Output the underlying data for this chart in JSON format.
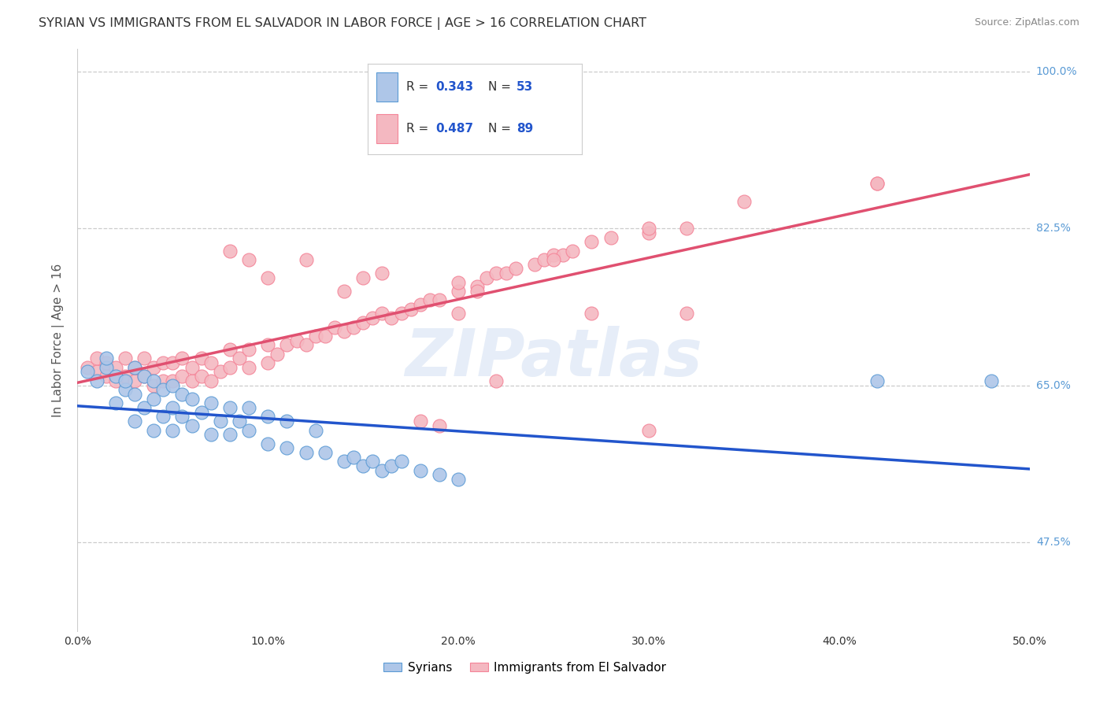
{
  "title": "SYRIAN VS IMMIGRANTS FROM EL SALVADOR IN LABOR FORCE | AGE > 16 CORRELATION CHART",
  "source": "Source: ZipAtlas.com",
  "ylabel_label": "In Labor Force | Age > 16",
  "xmin": 0.0,
  "xmax": 0.5,
  "ymin": 0.375,
  "ymax": 1.025,
  "ytick_positions": [
    0.475,
    0.65,
    0.825,
    1.0
  ],
  "ytick_labels": [
    "47.5%",
    "65.0%",
    "82.5%",
    "100.0%"
  ],
  "xtick_positions": [
    0.0,
    0.1,
    0.2,
    0.3,
    0.4,
    0.5
  ],
  "xtick_labels": [
    "0.0%",
    "10.0%",
    "20.0%",
    "30.0%",
    "40.0%",
    "50.0%"
  ],
  "blue_color": "#5b9bd5",
  "pink_color": "#f48498",
  "blue_scatter_color": "#aec6e8",
  "pink_scatter_color": "#f4b8c1",
  "blue_line_color": "#2255cc",
  "pink_line_color": "#e05070",
  "legend_text_color": "#2255cc",
  "background_color": "#ffffff",
  "grid_color": "#cccccc",
  "blue_scatter_x": [
    0.005,
    0.01,
    0.015,
    0.015,
    0.02,
    0.02,
    0.025,
    0.025,
    0.03,
    0.03,
    0.03,
    0.035,
    0.035,
    0.04,
    0.04,
    0.04,
    0.045,
    0.045,
    0.05,
    0.05,
    0.05,
    0.055,
    0.055,
    0.06,
    0.06,
    0.065,
    0.07,
    0.07,
    0.075,
    0.08,
    0.08,
    0.085,
    0.09,
    0.09,
    0.1,
    0.1,
    0.11,
    0.11,
    0.12,
    0.125,
    0.13,
    0.14,
    0.145,
    0.15,
    0.155,
    0.16,
    0.165,
    0.17,
    0.18,
    0.19,
    0.2,
    0.42,
    0.48
  ],
  "blue_scatter_y": [
    0.665,
    0.655,
    0.67,
    0.68,
    0.63,
    0.66,
    0.645,
    0.655,
    0.61,
    0.64,
    0.67,
    0.625,
    0.66,
    0.6,
    0.635,
    0.655,
    0.615,
    0.645,
    0.6,
    0.625,
    0.65,
    0.615,
    0.64,
    0.605,
    0.635,
    0.62,
    0.595,
    0.63,
    0.61,
    0.595,
    0.625,
    0.61,
    0.6,
    0.625,
    0.585,
    0.615,
    0.58,
    0.61,
    0.575,
    0.6,
    0.575,
    0.565,
    0.57,
    0.56,
    0.565,
    0.555,
    0.56,
    0.565,
    0.555,
    0.55,
    0.545,
    0.655,
    0.655
  ],
  "pink_scatter_x": [
    0.005,
    0.01,
    0.01,
    0.015,
    0.015,
    0.02,
    0.02,
    0.025,
    0.025,
    0.03,
    0.03,
    0.035,
    0.035,
    0.04,
    0.04,
    0.045,
    0.045,
    0.05,
    0.05,
    0.055,
    0.055,
    0.06,
    0.06,
    0.065,
    0.065,
    0.07,
    0.07,
    0.075,
    0.08,
    0.08,
    0.085,
    0.09,
    0.09,
    0.1,
    0.1,
    0.105,
    0.11,
    0.115,
    0.12,
    0.125,
    0.13,
    0.135,
    0.14,
    0.145,
    0.15,
    0.155,
    0.16,
    0.165,
    0.17,
    0.175,
    0.18,
    0.185,
    0.19,
    0.2,
    0.2,
    0.21,
    0.215,
    0.22,
    0.225,
    0.23,
    0.24,
    0.245,
    0.25,
    0.255,
    0.26,
    0.27,
    0.28,
    0.3,
    0.32,
    0.15,
    0.1,
    0.18,
    0.19,
    0.3,
    0.22,
    0.12,
    0.14,
    0.2,
    0.35,
    0.42,
    0.08,
    0.09,
    0.27,
    0.32,
    0.25,
    0.21,
    0.3,
    0.16,
    0.42
  ],
  "pink_scatter_y": [
    0.67,
    0.665,
    0.68,
    0.66,
    0.675,
    0.655,
    0.67,
    0.66,
    0.68,
    0.655,
    0.67,
    0.66,
    0.68,
    0.65,
    0.67,
    0.655,
    0.675,
    0.655,
    0.675,
    0.66,
    0.68,
    0.655,
    0.67,
    0.66,
    0.68,
    0.655,
    0.675,
    0.665,
    0.67,
    0.69,
    0.68,
    0.67,
    0.69,
    0.675,
    0.695,
    0.685,
    0.695,
    0.7,
    0.695,
    0.705,
    0.705,
    0.715,
    0.71,
    0.715,
    0.72,
    0.725,
    0.73,
    0.725,
    0.73,
    0.735,
    0.74,
    0.745,
    0.745,
    0.755,
    0.765,
    0.76,
    0.77,
    0.775,
    0.775,
    0.78,
    0.785,
    0.79,
    0.795,
    0.795,
    0.8,
    0.81,
    0.815,
    0.82,
    0.825,
    0.77,
    0.77,
    0.61,
    0.605,
    0.6,
    0.655,
    0.79,
    0.755,
    0.73,
    0.855,
    0.875,
    0.8,
    0.79,
    0.73,
    0.73,
    0.79,
    0.755,
    0.825,
    0.775,
    0.875
  ]
}
